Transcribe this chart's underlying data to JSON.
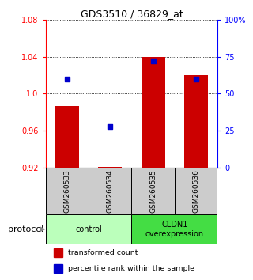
{
  "title": "GDS3510 / 36829_at",
  "samples": [
    "GSM260533",
    "GSM260534",
    "GSM260535",
    "GSM260536"
  ],
  "bar_bottom": 0.92,
  "bar_tops": [
    0.987,
    0.921,
    1.04,
    1.02
  ],
  "percentile_ranks": [
    60,
    28,
    72,
    60
  ],
  "ylim_left": [
    0.92,
    1.08
  ],
  "ylim_right": [
    0,
    100
  ],
  "yticks_left": [
    0.92,
    0.96,
    1.0,
    1.04,
    1.08
  ],
  "yticks_right": [
    0,
    25,
    50,
    75,
    100
  ],
  "ytick_labels_right": [
    "0",
    "25",
    "50",
    "75",
    "100%"
  ],
  "bar_color": "#cc0000",
  "scatter_color": "#0000cc",
  "protocol_groups": [
    {
      "label": "control",
      "samples": [
        0,
        1
      ],
      "color": "#bbffbb"
    },
    {
      "label": "CLDN1\noverexpression",
      "samples": [
        2,
        3
      ],
      "color": "#44dd44"
    }
  ],
  "protocol_label": "protocol",
  "legend_items": [
    {
      "color": "#cc0000",
      "label": "transformed count"
    },
    {
      "color": "#0000cc",
      "label": "percentile rank within the sample"
    }
  ],
  "sample_box_color": "#cccccc",
  "bar_width": 0.55
}
